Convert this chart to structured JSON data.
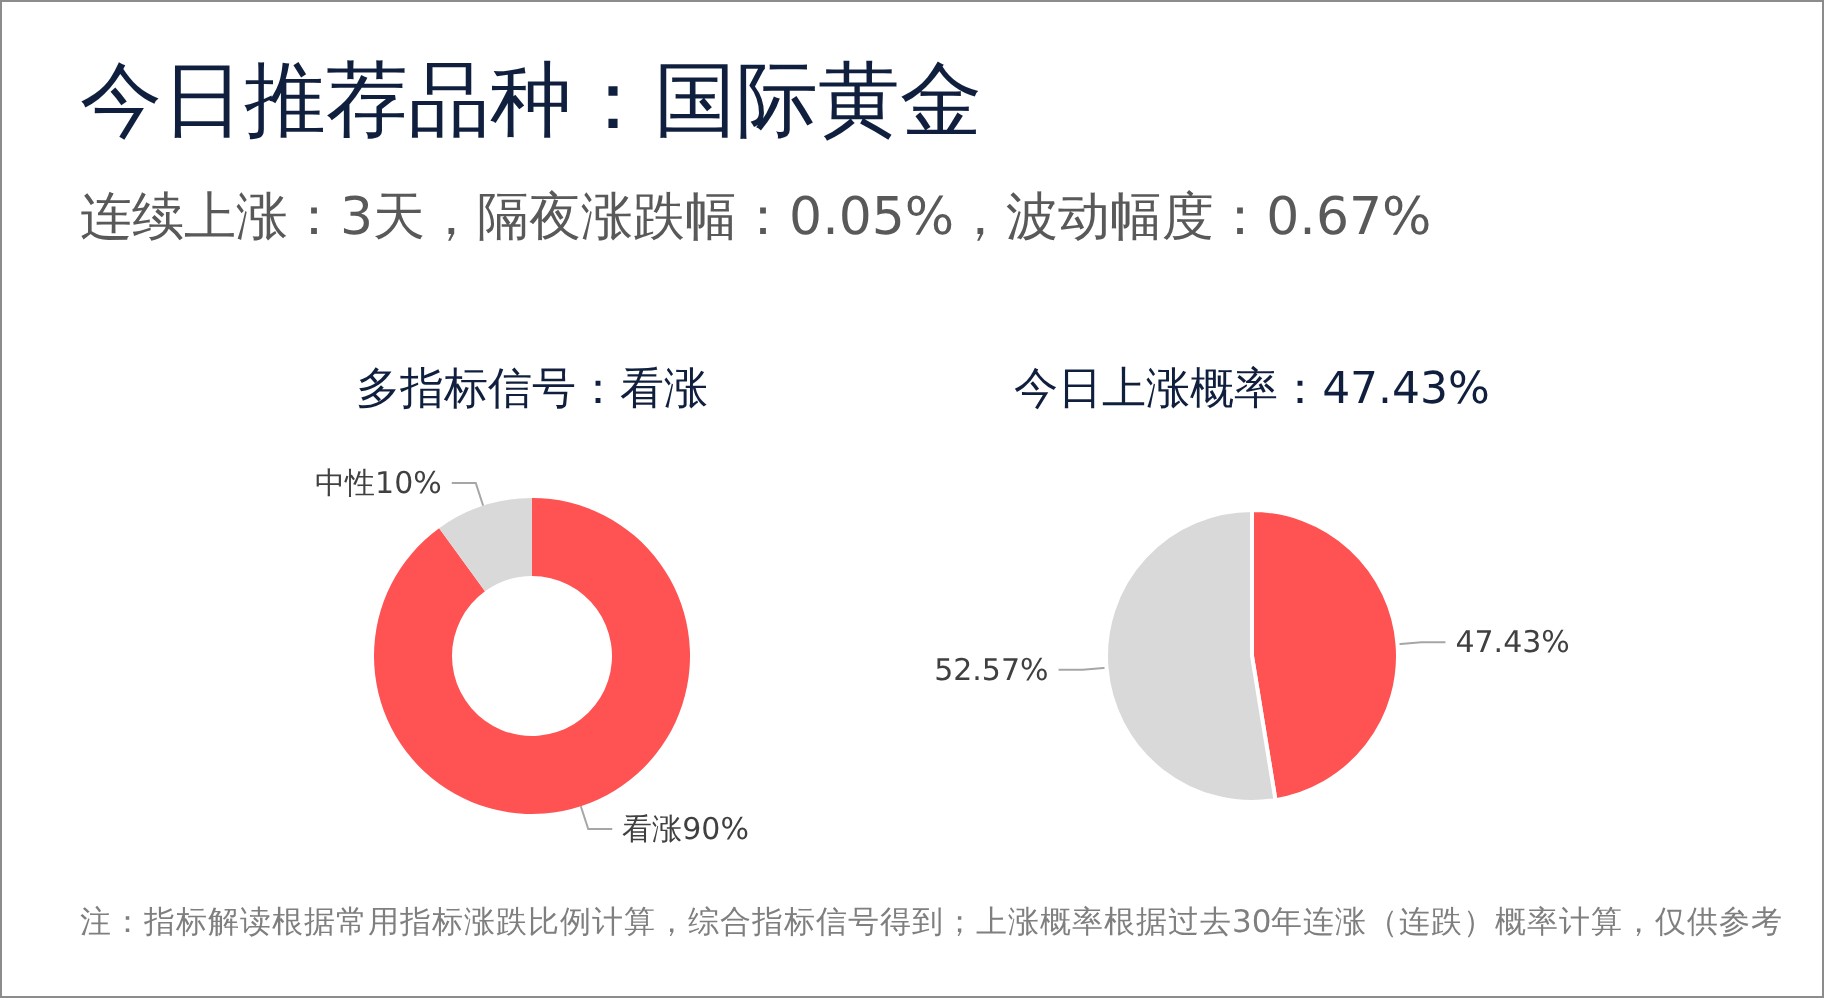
{
  "chart_data": [
    {
      "type": "other",
      "title": "今日推荐品种：国际黄金",
      "subtitle": "连续上涨：3天，隔夜涨跌幅：0.05%，波动幅度：0.67%",
      "annotations": [
        "注：指标解读根据常用指标涨跌比例计算，综合指标信号得到；上涨概率根据过去30年连涨（连跌）概率计算，仅供参考"
      ]
    },
    {
      "type": "donut",
      "title": "多指标信号：看涨",
      "categories": [
        "看涨",
        "中性"
      ],
      "values": [
        90,
        10
      ],
      "colors": [
        "#ff5252",
        "#d9d9d9"
      ],
      "value_labels": [
        "90%",
        "10%"
      ]
    },
    {
      "type": "pie",
      "title": "今日上涨概率：47.43%",
      "categories": [
        null,
        null
      ],
      "values": [
        47.43,
        52.57
      ],
      "colors": [
        "#ff5252",
        "#d9d9d9"
      ],
      "value_labels": [
        "47.43%",
        "52.57%"
      ]
    }
  ]
}
